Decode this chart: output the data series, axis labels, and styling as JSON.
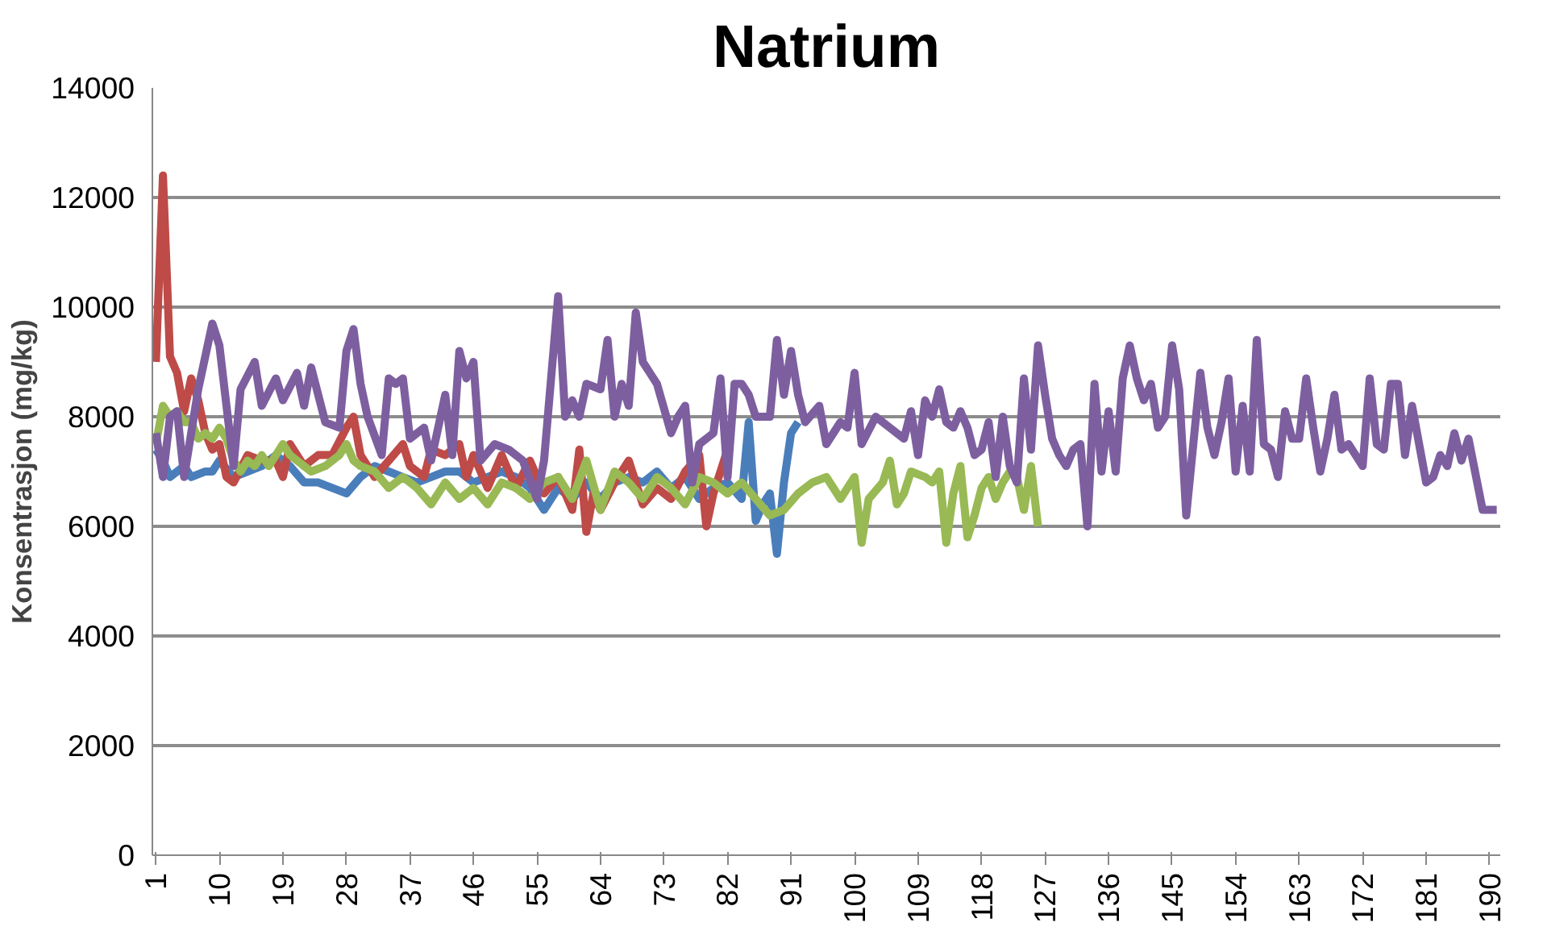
{
  "chart_data": {
    "type": "line",
    "title": "Natrium",
    "ylabel": "Konsentrasjon (mg/kg)",
    "xlim": [
      0.5,
      191.5
    ],
    "xticks": [
      1,
      10,
      19,
      28,
      37,
      46,
      55,
      64,
      73,
      82,
      91,
      100,
      109,
      118,
      127,
      136,
      145,
      154,
      163,
      172,
      181,
      190
    ],
    "ylim": [
      0,
      14000
    ],
    "yticks": [
      0,
      2000,
      4000,
      6000,
      8000,
      10000,
      12000,
      14000
    ],
    "grid": "y",
    "marker": "none",
    "line_style": "solid",
    "series": [
      {
        "color": "#4a7ebb",
        "x": [
          1,
          2,
          3,
          5,
          6,
          8,
          9,
          10,
          12,
          14,
          16,
          18,
          20,
          22,
          24,
          26,
          28,
          30,
          32,
          34,
          36,
          38,
          40,
          42,
          44,
          46,
          48,
          50,
          52,
          54,
          56,
          58,
          60,
          62,
          64,
          66,
          68,
          70,
          72,
          74,
          76,
          78,
          80,
          82,
          84,
          85,
          86,
          87,
          88,
          89,
          90,
          91,
          92
        ],
        "values": [
          7400,
          7200,
          6900,
          7100,
          6900,
          7000,
          7000,
          7200,
          6900,
          7000,
          7100,
          7300,
          7100,
          6800,
          6800,
          6700,
          6600,
          6900,
          7100,
          7000,
          6900,
          6800,
          6900,
          7000,
          7000,
          6800,
          6900,
          7000,
          6900,
          6700,
          6300,
          6700,
          6500,
          6800,
          6500,
          6800,
          6900,
          6800,
          7000,
          6700,
          6900,
          6500,
          6700,
          6800,
          6500,
          7900,
          6100,
          6400,
          6600,
          5500,
          6800,
          7700,
          7900
        ]
      },
      {
        "color": "#be4b48",
        "x": [
          1,
          2,
          3,
          4,
          5,
          6,
          7,
          8,
          9,
          10,
          11,
          12,
          14,
          16,
          18,
          19,
          20,
          22,
          24,
          26,
          28,
          29,
          30,
          32,
          34,
          36,
          37,
          39,
          40,
          42,
          44,
          45,
          46,
          48,
          50,
          52,
          54,
          56,
          58,
          60,
          61,
          62,
          63,
          64,
          66,
          68,
          70,
          72,
          74,
          76,
          78,
          79,
          80,
          82
        ],
        "values": [
          9000,
          12400,
          9100,
          8800,
          8100,
          8700,
          8300,
          7700,
          7400,
          7500,
          6900,
          6800,
          7300,
          7200,
          7200,
          6900,
          7500,
          7100,
          7300,
          7300,
          7800,
          8000,
          7300,
          6900,
          7200,
          7500,
          7100,
          6900,
          7400,
          7300,
          7500,
          6900,
          7300,
          6700,
          7300,
          6700,
          7200,
          6600,
          6900,
          6300,
          7400,
          5900,
          6600,
          6300,
          6800,
          7200,
          6400,
          6700,
          6500,
          7000,
          7300,
          6000,
          6600,
          7400
        ]
      },
      {
        "color": "#98b954",
        "x": [
          1,
          2,
          3,
          4,
          5,
          6,
          7,
          8,
          9,
          10,
          11,
          12,
          13,
          14,
          15,
          16,
          17,
          18,
          19,
          20,
          21,
          23,
          25,
          27,
          28,
          29,
          30,
          32,
          34,
          36,
          38,
          40,
          42,
          44,
          46,
          48,
          50,
          52,
          54,
          56,
          58,
          60,
          62,
          64,
          66,
          68,
          70,
          72,
          74,
          76,
          78,
          80,
          82,
          84,
          86,
          88,
          90,
          92,
          94,
          96,
          98,
          100,
          101,
          102,
          104,
          105,
          106,
          107,
          108,
          110,
          111,
          112,
          113,
          114,
          115,
          116,
          117,
          118,
          119,
          120,
          121,
          122,
          123,
          124,
          125,
          126
        ],
        "values": [
          7500,
          8200,
          8000,
          8100,
          7900,
          7900,
          7600,
          7700,
          7600,
          7800,
          7600,
          7200,
          7000,
          7200,
          7100,
          7300,
          7100,
          7300,
          7500,
          7300,
          7200,
          7000,
          7100,
          7300,
          7500,
          7200,
          7100,
          7000,
          6700,
          6900,
          6700,
          6400,
          6800,
          6500,
          6700,
          6400,
          6800,
          6700,
          6500,
          6800,
          6900,
          6500,
          7200,
          6300,
          7000,
          6800,
          6500,
          6900,
          6700,
          6400,
          6900,
          6800,
          6600,
          6800,
          6500,
          6200,
          6300,
          6600,
          6800,
          6900,
          6500,
          6900,
          5700,
          6500,
          6800,
          7200,
          6400,
          6600,
          7000,
          6900,
          6800,
          7000,
          5700,
          6600,
          7100,
          5800,
          6200,
          6700,
          6900,
          6500,
          6800,
          7000,
          6900,
          6300,
          7100,
          6000
        ]
      },
      {
        "color": "#7d5fa0",
        "x": [
          1,
          2,
          3,
          4,
          5,
          7,
          9,
          10,
          12,
          13,
          15,
          16,
          18,
          19,
          21,
          22,
          23,
          25,
          27,
          28,
          29,
          30,
          31,
          33,
          34,
          35,
          36,
          37,
          39,
          40,
          42,
          43,
          44,
          45,
          46,
          47,
          49,
          51,
          53,
          55,
          56,
          58,
          59,
          60,
          61,
          62,
          64,
          65,
          66,
          67,
          68,
          69,
          70,
          71,
          72,
          74,
          75,
          76,
          77,
          78,
          80,
          81,
          82,
          83,
          84,
          85,
          86,
          88,
          89,
          90,
          91,
          92,
          93,
          95,
          96,
          98,
          99,
          100,
          101,
          103,
          105,
          107,
          108,
          109,
          110,
          111,
          112,
          113,
          114,
          115,
          116,
          117,
          118,
          119,
          120,
          121,
          122,
          123,
          124,
          125,
          126,
          127,
          128,
          129,
          130,
          131,
          132,
          133,
          134,
          135,
          136,
          137,
          138,
          139,
          140,
          141,
          142,
          143,
          144,
          145,
          146,
          147,
          148,
          149,
          150,
          151,
          152,
          153,
          154,
          155,
          156,
          157,
          158,
          159,
          160,
          161,
          162,
          163,
          164,
          165,
          166,
          167,
          168,
          169,
          170,
          171,
          172,
          173,
          174,
          175,
          176,
          177,
          178,
          179,
          180,
          181,
          182,
          183,
          184,
          185,
          186,
          187,
          189,
          191
        ],
        "values": [
          7700,
          6900,
          8000,
          8100,
          6900,
          8500,
          9700,
          9300,
          7100,
          8500,
          9000,
          8200,
          8700,
          8300,
          8800,
          8200,
          8900,
          7900,
          7800,
          9200,
          9600,
          8600,
          8000,
          7300,
          8700,
          8600,
          8700,
          7600,
          7800,
          7200,
          8400,
          7300,
          9200,
          8700,
          9000,
          7200,
          7500,
          7400,
          7200,
          6500,
          7200,
          10200,
          8000,
          8300,
          8000,
          8600,
          8500,
          9400,
          8000,
          8600,
          8200,
          9900,
          9000,
          8800,
          8600,
          7700,
          8000,
          8200,
          6800,
          7500,
          7700,
          8700,
          6900,
          8600,
          8600,
          8400,
          8000,
          8000,
          9400,
          8400,
          9200,
          8400,
          7900,
          8200,
          7500,
          7900,
          7800,
          8800,
          7500,
          8000,
          7800,
          7600,
          8100,
          7300,
          8300,
          8000,
          8500,
          7900,
          7800,
          8100,
          7800,
          7300,
          7400,
          7900,
          6900,
          8000,
          7100,
          6800,
          8700,
          7400,
          9300,
          8400,
          7600,
          7300,
          7100,
          7400,
          7500,
          6000,
          8600,
          7000,
          8100,
          7000,
          8700,
          9300,
          8700,
          8300,
          8600,
          7800,
          8000,
          9300,
          8500,
          6200,
          7500,
          8800,
          7800,
          7300,
          7900,
          8700,
          7000,
          8200,
          7000,
          9400,
          7500,
          7400,
          6900,
          8100,
          7600,
          7600,
          8700,
          7800,
          7000,
          7600,
          8400,
          7400,
          7500,
          7300,
          7100,
          8700,
          7500,
          7400,
          8600,
          8600,
          7300,
          8200,
          7500,
          6800,
          6900,
          7300,
          7100,
          7700,
          7200,
          7600,
          6300,
          6300
        ]
      }
    ]
  }
}
